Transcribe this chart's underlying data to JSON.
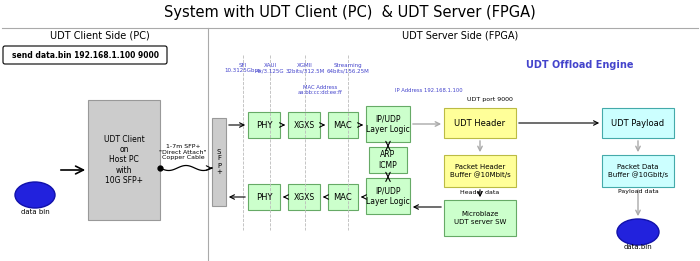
{
  "title": "System with UDT Client (PC)  & UDT Server (FPGA)",
  "left_section_label": "UDT Client Side (PC)",
  "right_section_label": "UDT Server Side (FPGA)",
  "udt_offload_label": "UDT Offload Engine",
  "cmd_text": "send data.bin 192.168.1.100 9000",
  "cable_label": "1-7m SFP+\n\"Direct Attach\"\nCopper Cable",
  "sfp_label": "S\nF\nP\n+",
  "udt_client_text": "UDT Client\non\nHost PC\nwith\n10G SFP+",
  "databin_left": "data bin",
  "databin_right": "data.bin",
  "phy_label": "PHY",
  "xgxs_label": "XGXS",
  "mac_label": "MAC",
  "ipudp_top_label": "IP/UDP\nLayer Logic",
  "ipudp_bot_label": "IP/UDP\nLayer Logic",
  "arp_label": "ARP\nICMP",
  "udt_header_label": "UDT Header",
  "udt_payload_label": "UDT Payload",
  "pkt_header_label": "Packet Header\nBuffer @10Mbit/s",
  "pkt_data_label": "Packet Data\nBuffer @10Gbit/s",
  "microblaze_label": "Microblaze\nUDT server SW",
  "udt_port_label": "UDT port 9000",
  "header_data_label": "Header data",
  "payload_data_label": "Payload data",
  "sfi_label": "SFI\n10.3125Gbps",
  "xaui_label": "XAUI\n4x/3.125G",
  "xgmii_label": "XGMII\n32bits/312.5M",
  "streaming_label": "Streaming\n64bits/156.25M",
  "mac_address_label": "MAC Address\naa:bb:cc:dd:ee:ff",
  "ip_address_label": "IP Address 192.168.1.100",
  "bg_color": "#ffffff",
  "green_box_color": "#ccffcc",
  "green_box_edge": "#66aa66",
  "yellow_box_color": "#ffff99",
  "yellow_box_edge": "#bbbb44",
  "cyan_box_color": "#ccffff",
  "cyan_box_edge": "#44aaaa",
  "gray_box_color": "#cccccc",
  "gray_box_edge": "#999999",
  "cmd_box_color": "#ffffff",
  "cmd_box_edge": "#000000",
  "blue_text_color": "#4444cc",
  "dashed_line_color": "#bbbbbb",
  "section_line_color": "#aaaaaa",
  "arrow_gray": "#aaaaaa",
  "arrow_black": "#000000"
}
